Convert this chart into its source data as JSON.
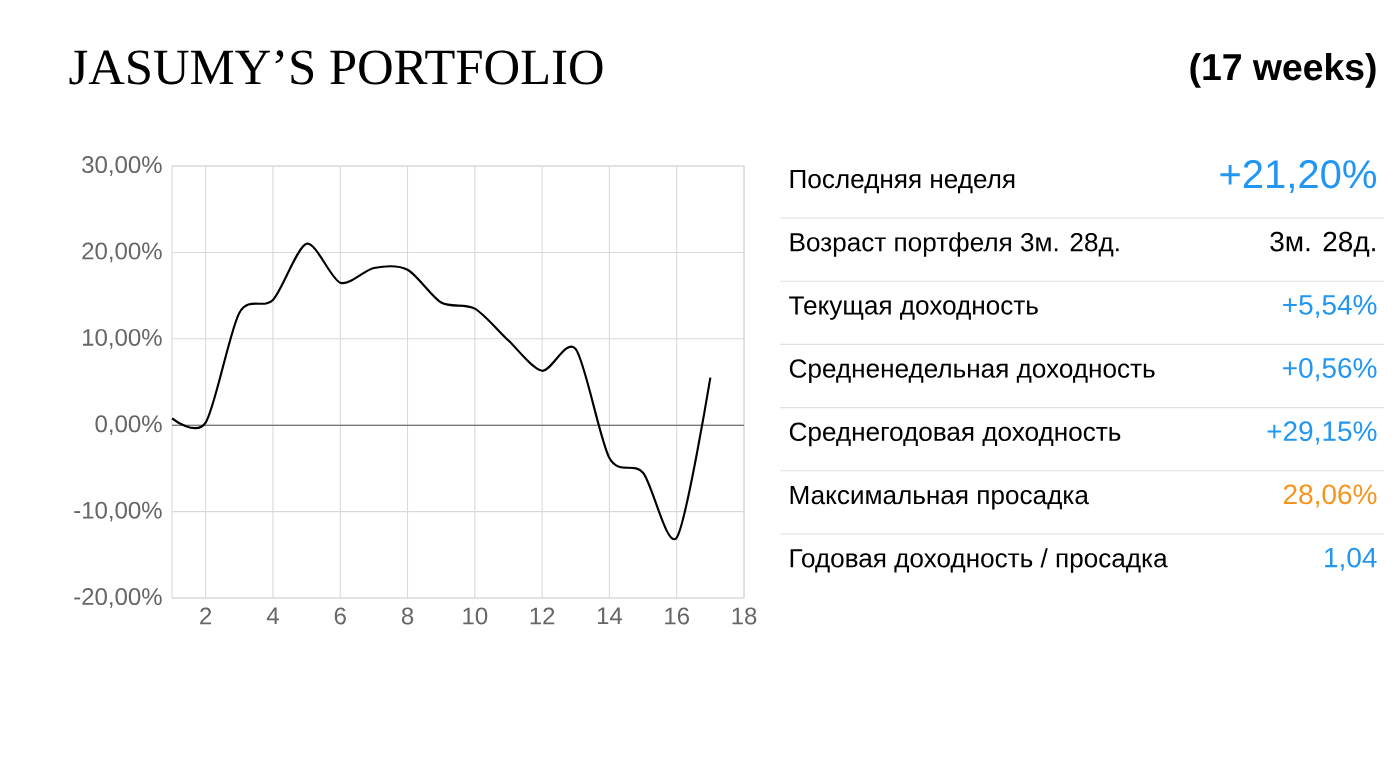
{
  "chart_data": [
    {
      "type": "line",
      "title": "JASUMY’S  PORTFOLIO",
      "x": [
        1,
        2,
        3,
        4,
        5,
        6,
        7,
        8,
        9,
        10,
        11,
        12,
        13,
        14,
        15,
        16,
        17
      ],
      "series": [
        {
          "color": "#000000",
          "values": [
            0.8,
            0.3,
            13,
            14.5,
            21,
            16.5,
            18.2,
            18,
            14.2,
            13.5,
            9.8,
            6.3,
            8.8,
            -3.8,
            -5.5,
            -13,
            5.5
          ]
        }
      ],
      "xlim": [
        1,
        18
      ],
      "xticks": [
        2,
        4,
        6,
        8,
        10,
        12,
        14,
        16,
        18
      ],
      "ylim": [
        -20,
        30
      ],
      "yticks": [
        {
          "value": -20,
          "label": "-20,00%"
        },
        {
          "value": -10,
          "label": "-10,00%"
        },
        {
          "value": 0,
          "label": "0,00%"
        },
        {
          "value": 10,
          "label": "10,00%"
        },
        {
          "value": 20,
          "label": "20,00%"
        },
        {
          "value": 30,
          "label": "30,00%"
        }
      ],
      "grid": true,
      "marker": "none",
      "line_style": "solid",
      "ref_lines": [
        {
          "axis": "y",
          "value": 0,
          "color": "#555555"
        }
      ]
    },
    {
      "type": "other",
      "title": "(17 weeks)",
      "annotations": [
        "Последняя неделя",
        "+21,20%",
        "Возраст портфеля 3м. 28д.",
        "3м. 28д.",
        "Текущая доходность",
        "+5,54%",
        "Средненедельная доходность",
        "+0,56%",
        "Среднегодовая доходность",
        "+29,15%",
        "Максимальная просадка",
        "28,06%",
        "Годовая доходность / просадка",
        "1,04"
      ],
      "colors": [
        "#2196f3",
        "#000000",
        "#2196f3",
        "#2196f3",
        "#2196f3",
        "#f7941d",
        "#2196f3"
      ]
    }
  ]
}
